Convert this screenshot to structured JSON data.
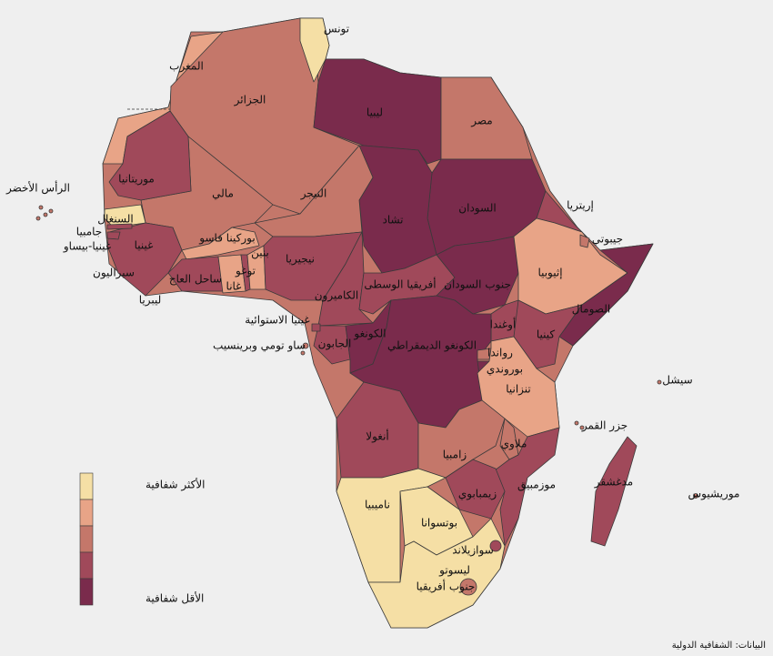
{
  "countries": [
    "تونس",
    "المغرب",
    "الجزائر",
    "ليبيا",
    "مصر",
    "موريتانيا",
    "مالي",
    "النيجر",
    "تشاد",
    "السودان",
    "إريتريا",
    "جيبوتي",
    "إثيوبيا",
    "الصومال",
    "السنغال",
    "جامبيا",
    "غينيا-بيساو",
    "غينيا",
    "سيراليون",
    "ليبريا",
    "ساحل العاج",
    "بوركينا فاسو",
    "غانا",
    "توغو",
    "بنين",
    "نيجيريا",
    "الكاميرون",
    "أفريقيا الوسطى",
    "جنوب السودان",
    "غينيا الاستوائية",
    "الجابون",
    "ساو تومي وبرينسيب",
    "الكونغو",
    "الكونغو الديمقراطي",
    "أوغندا",
    "كينيا",
    "رواندا",
    "بوروندي",
    "تنزانيا",
    "سيشل",
    "جزر القمر",
    "أنغولا",
    "زامبيا",
    "ملاوي",
    "موزمبيق",
    "مدغشقر",
    "موريشيوس",
    "زيمبابوي",
    "ناميبيا",
    "بوتسوانا",
    "سوازيلاند",
    "ليسوتو",
    "جنوب أفريقيا",
    "الرأس الأخضر"
  ],
  "legend": {
    "colors": [
      "#f5dfa5",
      "#e8a487",
      "#c4776a",
      "#a0495a",
      "#7a2b4c"
    ],
    "most": "الأكثر شفافية",
    "least": "الأقل شفافية"
  },
  "source": "البيانات: الشفافية الدولية"
}
